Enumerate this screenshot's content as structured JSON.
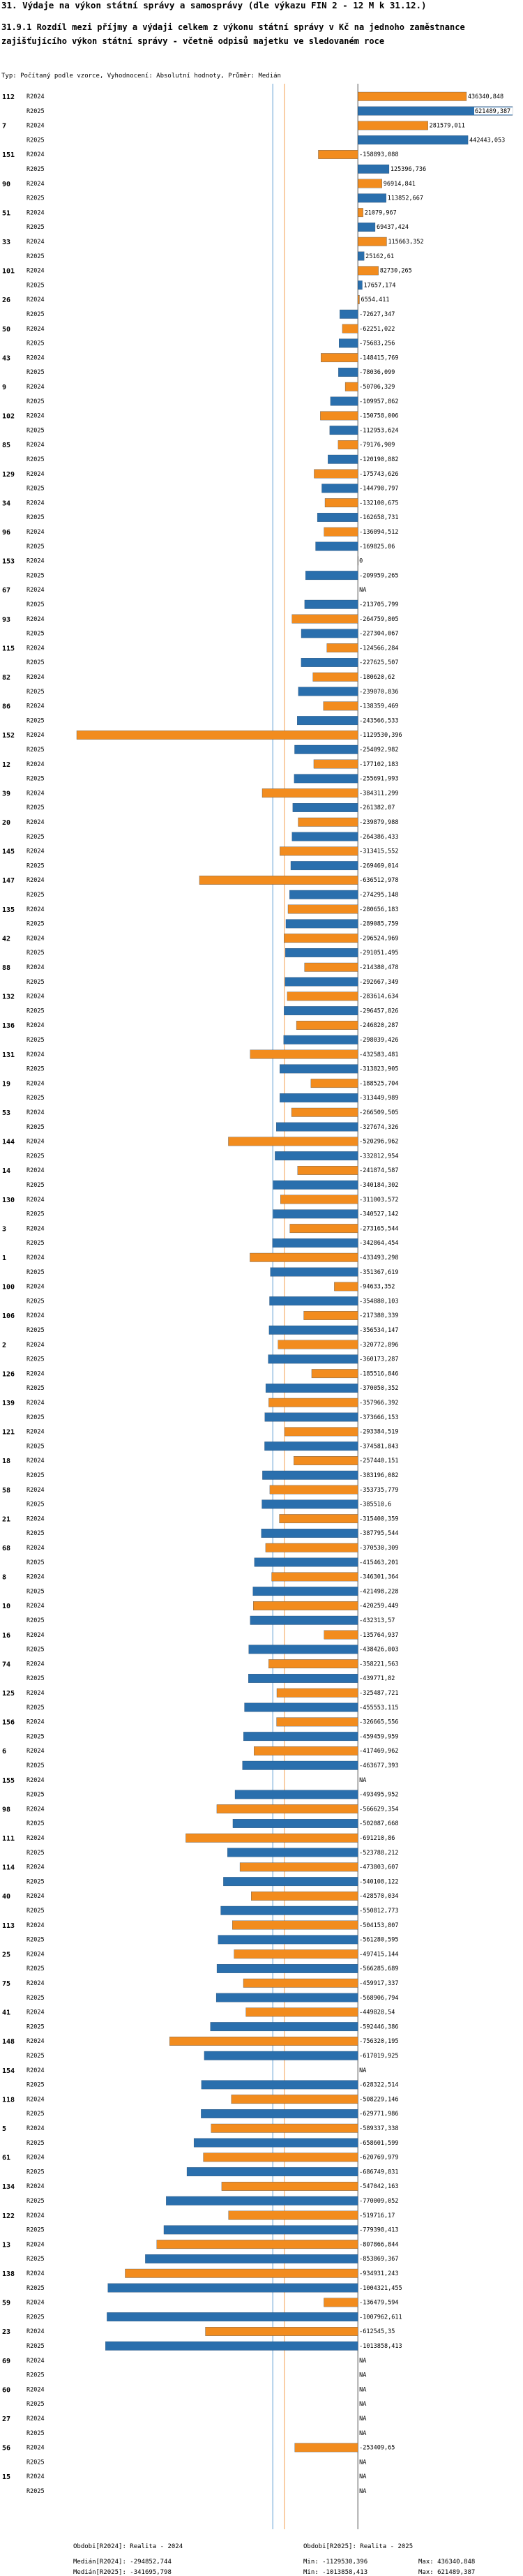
{
  "title": "31. Výdaje na výkon státní správy a samosprávy (dle výkazu FIN 2 - 12 M k 31.12.)",
  "subtitle": "31.9.1 Rozdíl mezi příjmy a výdaji celkem z výkonu státní správy v Kč na jednoho zaměstnance zajišťujícího výkon státní správy - včetně odpisů majetku ve sledovaném roce",
  "params": "Typ: Počítaný podle vzorce, Vyhodnocení: Absolutní hodnoty, Průměr: Medián",
  "footer": {
    "legend_2024": "Obdobi[R2024]: Realita - 2024",
    "legend_2025": "Obdobi[R2025]: Realita - 2025",
    "median_2024": "Medián[R2024]: -294852,744",
    "median_2025": "Medián[R2025]: -341695,798",
    "min_2024": "Min: -1129530,396",
    "min_2025": "Min: -1013858,413",
    "max_2024": "Max: 436340,848",
    "max_2025": "Max: 621489,387"
  },
  "chart_data": {
    "type": "bar",
    "orientation": "horizontal",
    "title": "Rozdíl mezi příjmy a výdaji celkem z výkonu státní správy v Kč na jednoho zaměstnance",
    "xlim": [
      -1129530.396,
      621489.387
    ],
    "series": [
      {
        "name": "R2024",
        "color": "#f28c1e"
      },
      {
        "name": "R2025",
        "color": "#2a6fad"
      }
    ],
    "medians": {
      "R2024": -294852.744,
      "R2025": -341695.798
    },
    "median_colors": {
      "R2024": "#f5b678",
      "R2025": "#86b5de"
    },
    "groups": [
      {
        "id": "112",
        "v2024": 436340.848,
        "v2025": 621489.387
      },
      {
        "id": "7",
        "v2024": 281579.011,
        "v2025": 442443.053
      },
      {
        "id": "151",
        "v2024": -158893.088,
        "v2025": 125396.736
      },
      {
        "id": "90",
        "v2024": 96914.841,
        "v2025": 113852.667
      },
      {
        "id": "51",
        "v2024": 21079.967,
        "v2025": 69437.424
      },
      {
        "id": "33",
        "v2024": 115663.352,
        "v2025": 25162.61
      },
      {
        "id": "101",
        "v2024": 82730.265,
        "v2025": 17657.174
      },
      {
        "id": "26",
        "v2024": 6554.411,
        "v2025": -72627.347
      },
      {
        "id": "50",
        "v2024": -62251.022,
        "v2025": -75683.256
      },
      {
        "id": "43",
        "v2024": -148415.769,
        "v2025": -78036.099
      },
      {
        "id": "9",
        "v2024": -50706.329,
        "v2025": -109957.862
      },
      {
        "id": "102",
        "v2024": -150758.006,
        "v2025": -112953.624
      },
      {
        "id": "85",
        "v2024": -79176.909,
        "v2025": -120190.882
      },
      {
        "id": "129",
        "v2024": -175743.626,
        "v2025": -144790.797
      },
      {
        "id": "34",
        "v2024": -132100.675,
        "v2025": -162658.731
      },
      {
        "id": "96",
        "v2024": -136094.512,
        "v2025": -169825.06
      },
      {
        "id": "153",
        "v2024": 0,
        "v2025": -209959.265
      },
      {
        "id": "67",
        "v2024": null,
        "v2025": -213705.799
      },
      {
        "id": "93",
        "v2024": -264759.805,
        "v2025": -227304.067
      },
      {
        "id": "115",
        "v2024": -124566.284,
        "v2025": -227625.507
      },
      {
        "id": "82",
        "v2024": -180620.62,
        "v2025": -239070.836
      },
      {
        "id": "86",
        "v2024": -138359.469,
        "v2025": -243566.533
      },
      {
        "id": "152",
        "v2024": -1129530.396,
        "v2025": -254092.982
      },
      {
        "id": "12",
        "v2024": -177102.183,
        "v2025": -255691.993
      },
      {
        "id": "39",
        "v2024": -384311.299,
        "v2025": -261382.07
      },
      {
        "id": "20",
        "v2024": -239879.988,
        "v2025": -264386.433
      },
      {
        "id": "145",
        "v2024": -313415.552,
        "v2025": -269469.014
      },
      {
        "id": "147",
        "v2024": -636512.978,
        "v2025": -274295.148
      },
      {
        "id": "135",
        "v2024": -280656.183,
        "v2025": -289085.759
      },
      {
        "id": "42",
        "v2024": -296524.969,
        "v2025": -291051.495
      },
      {
        "id": "88",
        "v2024": -214380.478,
        "v2025": -292667.349
      },
      {
        "id": "132",
        "v2024": -283614.634,
        "v2025": -296457.826
      },
      {
        "id": "136",
        "v2024": -246820.287,
        "v2025": -298039.426
      },
      {
        "id": "131",
        "v2024": -432583.481,
        "v2025": -313823.905
      },
      {
        "id": "19",
        "v2024": -188525.704,
        "v2025": -313449.989
      },
      {
        "id": "53",
        "v2024": -266509.505,
        "v2025": -327674.326
      },
      {
        "id": "144",
        "v2024": -520296.962,
        "v2025": -332812.954
      },
      {
        "id": "14",
        "v2024": -241874.587,
        "v2025": -340184.302
      },
      {
        "id": "130",
        "v2024": -311003.572,
        "v2025": -340527.142
      },
      {
        "id": "3",
        "v2024": -273165.544,
        "v2025": -342864.454
      },
      {
        "id": "1",
        "v2024": -433493.298,
        "v2025": -351367.619
      },
      {
        "id": "100",
        "v2024": -94633.352,
        "v2025": -354880.103
      },
      {
        "id": "106",
        "v2024": -217380.339,
        "v2025": -356534.147
      },
      {
        "id": "2",
        "v2024": -320772.896,
        "v2025": -360173.287
      },
      {
        "id": "126",
        "v2024": -185516.846,
        "v2025": -370050.352
      },
      {
        "id": "139",
        "v2024": -357966.392,
        "v2025": -373666.153
      },
      {
        "id": "121",
        "v2024": -293384.519,
        "v2025": -374581.843
      },
      {
        "id": "18",
        "v2024": -257440.151,
        "v2025": -383196.082
      },
      {
        "id": "58",
        "v2024": -353735.779,
        "v2025": -385510.6
      },
      {
        "id": "21",
        "v2024": -315400.359,
        "v2025": -387795.544
      },
      {
        "id": "68",
        "v2024": -370530.309,
        "v2025": -415463.201
      },
      {
        "id": "8",
        "v2024": -346301.364,
        "v2025": -421498.228
      },
      {
        "id": "10",
        "v2024": -420259.449,
        "v2025": -432313.57
      },
      {
        "id": "16",
        "v2024": -135764.937,
        "v2025": -438426.003
      },
      {
        "id": "74",
        "v2024": -358221.563,
        "v2025": -439771.82
      },
      {
        "id": "125",
        "v2024": -325487.721,
        "v2025": -455553.115
      },
      {
        "id": "156",
        "v2024": -326665.556,
        "v2025": -459459.959
      },
      {
        "id": "6",
        "v2024": -417469.962,
        "v2025": -463677.393
      },
      {
        "id": "155",
        "v2024": null,
        "v2025": -493495.952
      },
      {
        "id": "98",
        "v2024": -566629.354,
        "v2025": -502087.668
      },
      {
        "id": "111",
        "v2024": -691210.86,
        "v2025": -523788.212
      },
      {
        "id": "114",
        "v2024": -473803.607,
        "v2025": -540108.122
      },
      {
        "id": "40",
        "v2024": -428570.034,
        "v2025": -550812.773
      },
      {
        "id": "113",
        "v2024": -504153.807,
        "v2025": -561280.595
      },
      {
        "id": "25",
        "v2024": -497415.144,
        "v2025": -566285.689
      },
      {
        "id": "75",
        "v2024": -459917.337,
        "v2025": -568906.794
      },
      {
        "id": "41",
        "v2024": -449828.54,
        "v2025": -592446.386
      },
      {
        "id": "148",
        "v2024": -756320.195,
        "v2025": -617019.925
      },
      {
        "id": "154",
        "v2024": null,
        "v2025": -628322.514
      },
      {
        "id": "118",
        "v2024": -508229.146,
        "v2025": -629771.986
      },
      {
        "id": "5",
        "v2024": -589337.338,
        "v2025": -658601.599
      },
      {
        "id": "61",
        "v2024": -620769.979,
        "v2025": -686749.831
      },
      {
        "id": "134",
        "v2024": -547042.163,
        "v2025": -770009.052
      },
      {
        "id": "122",
        "v2024": -519716.17,
        "v2025": -779398.413
      },
      {
        "id": "13",
        "v2024": -807866.844,
        "v2025": -853869.367
      },
      {
        "id": "138",
        "v2024": -934931.243,
        "v2025": -1004321.455
      },
      {
        "id": "59",
        "v2024": -136479.594,
        "v2025": -1007962.611
      },
      {
        "id": "23",
        "v2024": -612545.35,
        "v2025": -1013858.413
      },
      {
        "id": "69",
        "v2024": null,
        "v2025": null
      },
      {
        "id": "60",
        "v2024": null,
        "v2025": null
      },
      {
        "id": "27",
        "v2024": null,
        "v2025": null
      },
      {
        "id": "56",
        "v2024": -253409.65,
        "v2025": null
      },
      {
        "id": "15",
        "v2024": null,
        "v2025": null
      }
    ]
  }
}
